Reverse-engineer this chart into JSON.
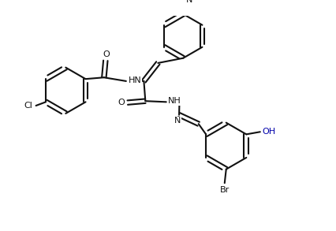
{
  "bg_color": "#ffffff",
  "line_color": "#111111",
  "lw": 1.5,
  "figsize": [
    4.27,
    2.93
  ],
  "dpi": 100,
  "xlim": [
    0,
    10.5
  ],
  "ylim": [
    0,
    7.0
  ]
}
